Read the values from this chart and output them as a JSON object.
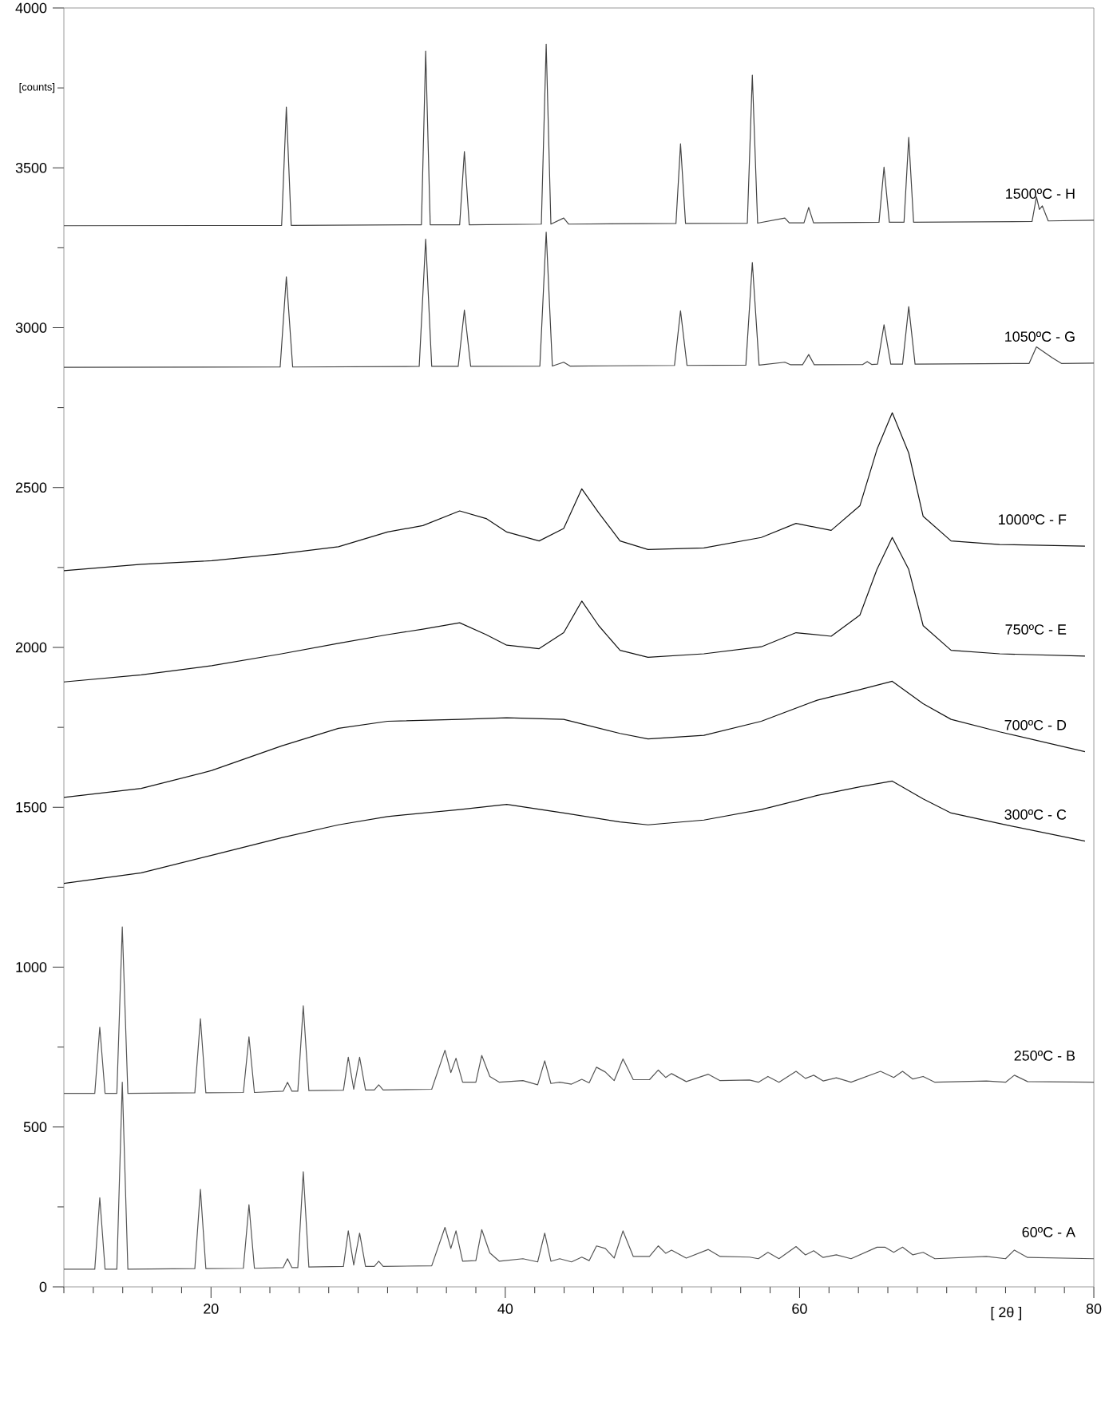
{
  "chart_data": {
    "type": "line",
    "xlabel": "[ 2θ ]",
    "ylabel": "[counts]",
    "xlim": [
      10,
      80
    ],
    "ylim": [
      0,
      4000
    ],
    "xticks": [
      {
        "value": 10,
        "label": null
      },
      {
        "value": 12,
        "label": null
      },
      {
        "value": 14,
        "label": null
      },
      {
        "value": 16,
        "label": null
      },
      {
        "value": 18,
        "label": null
      },
      20,
      {
        "value": 22,
        "label": null
      },
      {
        "value": 24,
        "label": null
      },
      {
        "value": 26,
        "label": null
      },
      {
        "value": 28,
        "label": null
      },
      {
        "value": 30,
        "label": null
      },
      {
        "value": 32,
        "label": null
      },
      {
        "value": 34,
        "label": null
      },
      {
        "value": 36,
        "label": null
      },
      {
        "value": 38,
        "label": null
      },
      40,
      {
        "value": 42,
        "label": null
      },
      {
        "value": 44,
        "label": null
      },
      {
        "value": 46,
        "label": null
      },
      {
        "value": 48,
        "label": null
      },
      {
        "value": 50,
        "label": null
      },
      {
        "value": 52,
        "label": null
      },
      {
        "value": 54,
        "label": null
      },
      {
        "value": 56,
        "label": null
      },
      {
        "value": 58,
        "label": null
      },
      60,
      {
        "value": 62,
        "label": null
      },
      {
        "value": 64,
        "label": null
      },
      {
        "value": 66,
        "label": null
      },
      {
        "value": 68,
        "label": null
      },
      {
        "value": 70,
        "label": null
      },
      {
        "value": 72,
        "label": null
      },
      {
        "value": 74,
        "label": null
      },
      {
        "value": 76,
        "label": null
      },
      {
        "value": 78,
        "label": null
      },
      80
    ],
    "yticks": [
      0,
      {
        "value": 250,
        "label": null
      },
      500,
      {
        "value": 750,
        "label": null
      },
      1000,
      {
        "value": 1250,
        "label": null
      },
      1500,
      {
        "value": 1750,
        "label": null
      },
      2000,
      {
        "value": 2250,
        "label": null
      },
      2500,
      {
        "value": 2750,
        "label": null
      },
      3000,
      {
        "value": 3250,
        "label": null
      },
      3500,
      {
        "value": 3750,
        "label": null
      },
      4000
    ],
    "grid": false,
    "marker": "none",
    "line_style": "solid",
    "series": [
      {
        "name": "1500ºC - H",
        "color": "#444444",
        "x": [
          10,
          24.8,
          25.12,
          25.45,
          34.3,
          34.59,
          34.9,
          36.9,
          37.22,
          37.55,
          42.45,
          42.78,
          43.1,
          43.97,
          44.3,
          51.6,
          51.91,
          52.25,
          56.45,
          56.79,
          57.15,
          59.0,
          59.3,
          60.3,
          60.62,
          60.95,
          65.4,
          65.74,
          66.1,
          67.1,
          67.42,
          67.75,
          75.8,
          76.1,
          76.3,
          76.5,
          76.9,
          80
        ],
        "values": [
          3319,
          3320,
          3690,
          3320,
          3322,
          3865,
          3322,
          3322,
          3551,
          3322,
          3324,
          3887,
          3324,
          3343,
          3324,
          3326,
          3575,
          3326,
          3327,
          3790,
          3327,
          3343,
          3328,
          3328,
          3376,
          3328,
          3330,
          3502,
          3330,
          3330,
          3595,
          3330,
          3332,
          3409,
          3370,
          3381,
          3334,
          3336
        ]
      },
      {
        "name": "1050ºC - G",
        "color": "#444444",
        "x": [
          10,
          24.7,
          25.12,
          25.55,
          34.15,
          34.59,
          35.0,
          36.8,
          37.22,
          37.65,
          42.35,
          42.78,
          43.2,
          43.97,
          44.4,
          51.5,
          51.91,
          52.35,
          56.35,
          56.79,
          57.25,
          59.0,
          59.4,
          60.2,
          60.62,
          61.0,
          64.3,
          64.6,
          64.9,
          65.3,
          65.74,
          66.2,
          67.0,
          67.42,
          67.85,
          75.6,
          76.1,
          77.2,
          77.8,
          80
        ],
        "values": [
          2876,
          2877,
          3159,
          2877,
          2879,
          3277,
          2879,
          2879,
          3055,
          2879,
          2880,
          3299,
          2880,
          2892,
          2880,
          2882,
          3053,
          2882,
          2883,
          3204,
          2883,
          2892,
          2884,
          2884,
          2916,
          2884,
          2885,
          2894,
          2885,
          2886,
          3009,
          2886,
          2886,
          3066,
          2886,
          2888,
          2940,
          2905,
          2888,
          2889
        ]
      },
      {
        "name": "1000ºC - F",
        "color": "#111111",
        "x": [
          10,
          15.26,
          20.05,
          24.8,
          28.66,
          32.0,
          34.4,
          36.9,
          38.7,
          40.1,
          42.3,
          43.97,
          45.2,
          46.35,
          47.8,
          49.7,
          53.5,
          57.4,
          59.76,
          62.15,
          64.1,
          65.26,
          66.3,
          67.42,
          68.4,
          70.3,
          73.6,
          79.4
        ],
        "values": [
          2240,
          2260,
          2271,
          2293,
          2315,
          2361,
          2381,
          2427,
          2403,
          2361,
          2333,
          2372,
          2496,
          2421,
          2333,
          2306,
          2311,
          2344,
          2388,
          2366,
          2443,
          2619,
          2734,
          2608,
          2410,
          2333,
          2322,
          2317
        ]
      },
      {
        "name": "750ºC - E",
        "color": "#111111",
        "x": [
          10,
          15.26,
          20.05,
          24.8,
          28.66,
          32.0,
          34.4,
          36.9,
          38.7,
          40.1,
          42.3,
          43.97,
          45.2,
          46.35,
          47.8,
          49.7,
          53.5,
          57.4,
          59.76,
          62.15,
          64.1,
          65.26,
          66.3,
          67.42,
          68.4,
          70.3,
          73.6,
          79.4
        ],
        "values": [
          1892,
          1914,
          1943,
          1980,
          2013,
          2040,
          2057,
          2077,
          2040,
          2007,
          1996,
          2046,
          2145,
          2068,
          1991,
          1969,
          1980,
          2002,
          2046,
          2035,
          2101,
          2244,
          2344,
          2244,
          2068,
          1991,
          1980,
          1973
        ]
      },
      {
        "name": "700ºC - D",
        "color": "#111111",
        "x": [
          10,
          15.26,
          20.05,
          24.8,
          28.66,
          32.0,
          36.9,
          40.1,
          43.97,
          47.8,
          49.7,
          53.5,
          57.4,
          61.2,
          64.1,
          66.3,
          68.4,
          70.3,
          73.6,
          79.4
        ],
        "values": [
          1531,
          1559,
          1615,
          1692,
          1747,
          1769,
          1775,
          1780,
          1775,
          1731,
          1714,
          1725,
          1769,
          1835,
          1868,
          1894,
          1824,
          1775,
          1736,
          1674
        ]
      },
      {
        "name": "300ºC - C",
        "color": "#111111",
        "x": [
          10,
          15.26,
          20.05,
          24.8,
          28.66,
          32.0,
          36.9,
          40.1,
          43.97,
          47.8,
          49.7,
          53.5,
          57.4,
          61.2,
          64.1,
          66.3,
          68.4,
          70.3,
          73.6,
          79.4
        ],
        "values": [
          1262,
          1295,
          1350,
          1405,
          1445,
          1471,
          1493,
          1509,
          1482,
          1454,
          1445,
          1460,
          1493,
          1537,
          1564,
          1582,
          1526,
          1482,
          1449,
          1394
        ]
      },
      {
        "name": "250ºC - B",
        "color": "#555555",
        "x": [
          10,
          12.1,
          12.44,
          12.8,
          13.6,
          13.97,
          14.35,
          18.9,
          19.28,
          19.65,
          22.2,
          22.58,
          22.95,
          24.9,
          25.2,
          25.5,
          25.9,
          26.27,
          26.65,
          29.0,
          29.33,
          29.7,
          30.1,
          30.5,
          31.1,
          31.4,
          31.7,
          35.0,
          35.9,
          36.3,
          36.65,
          37.1,
          38.0,
          38.4,
          38.95,
          39.6,
          41.2,
          42.2,
          42.68,
          43.1,
          43.7,
          44.5,
          45.2,
          45.7,
          46.2,
          46.8,
          47.4,
          48.0,
          48.7,
          49.8,
          50.4,
          50.9,
          51.3,
          52.3,
          53.8,
          54.6,
          56.6,
          57.2,
          57.85,
          58.6,
          59.76,
          60.4,
          60.96,
          61.6,
          62.5,
          63.5,
          65.5,
          66.4,
          67.0,
          67.7,
          68.4,
          69.2,
          72.7,
          74.0,
          74.6,
          75.5,
          80
        ],
        "values": [
          605,
          605,
          812,
          605,
          605,
          1126,
          605,
          607,
          839,
          607,
          608,
          782,
          608,
          612,
          640,
          612,
          612,
          879,
          614,
          615,
          718,
          618,
          718,
          616,
          616,
          632,
          616,
          618,
          740,
          670,
          715,
          640,
          640,
          724,
          658,
          640,
          645,
          632,
          707,
          636,
          640,
          634,
          649,
          638,
          687,
          672,
          645,
          713,
          648,
          648,
          678,
          655,
          667,
          642,
          665,
          645,
          647,
          640,
          658,
          640,
          674,
          652,
          662,
          644,
          654,
          640,
          674,
          655,
          674,
          650,
          658,
          640,
          644,
          640,
          662,
          642,
          640
        ]
      },
      {
        "name": "60ºC - A",
        "color": "#555555",
        "x": [
          10,
          12.1,
          12.44,
          12.8,
          13.6,
          13.97,
          14.35,
          18.9,
          19.28,
          19.65,
          22.2,
          22.58,
          22.95,
          24.9,
          25.2,
          25.5,
          25.9,
          26.27,
          26.65,
          29.0,
          29.33,
          29.7,
          30.1,
          30.5,
          31.1,
          31.4,
          31.7,
          35.0,
          35.9,
          36.3,
          36.65,
          37.1,
          38.0,
          38.4,
          38.95,
          39.6,
          41.2,
          42.2,
          42.68,
          43.1,
          43.7,
          44.5,
          45.2,
          45.7,
          46.2,
          46.8,
          47.4,
          48.0,
          48.7,
          49.8,
          50.4,
          50.9,
          51.3,
          52.3,
          53.8,
          54.6,
          56.6,
          57.2,
          57.85,
          58.6,
          59.76,
          60.4,
          60.96,
          61.6,
          62.5,
          63.5,
          65.26,
          65.8,
          66.4,
          67.0,
          67.7,
          68.4,
          69.2,
          72.7,
          74.0,
          74.6,
          75.5,
          80
        ],
        "values": [
          55,
          55,
          279,
          55,
          55,
          640,
          55,
          57,
          305,
          57,
          58,
          257,
          58,
          60,
          88,
          60,
          60,
          360,
          62,
          64,
          175,
          68,
          168,
          64,
          64,
          80,
          64,
          66,
          186,
          120,
          175,
          80,
          82,
          179,
          106,
          80,
          88,
          78,
          168,
          80,
          88,
          78,
          93,
          82,
          128,
          120,
          90,
          175,
          95,
          95,
          128,
          105,
          115,
          90,
          117,
          95,
          93,
          88,
          108,
          88,
          126,
          100,
          113,
          92,
          100,
          88,
          124,
          124,
          108,
          124,
          100,
          108,
          88,
          95,
          88,
          115,
          92,
          88
        ]
      }
    ]
  }
}
